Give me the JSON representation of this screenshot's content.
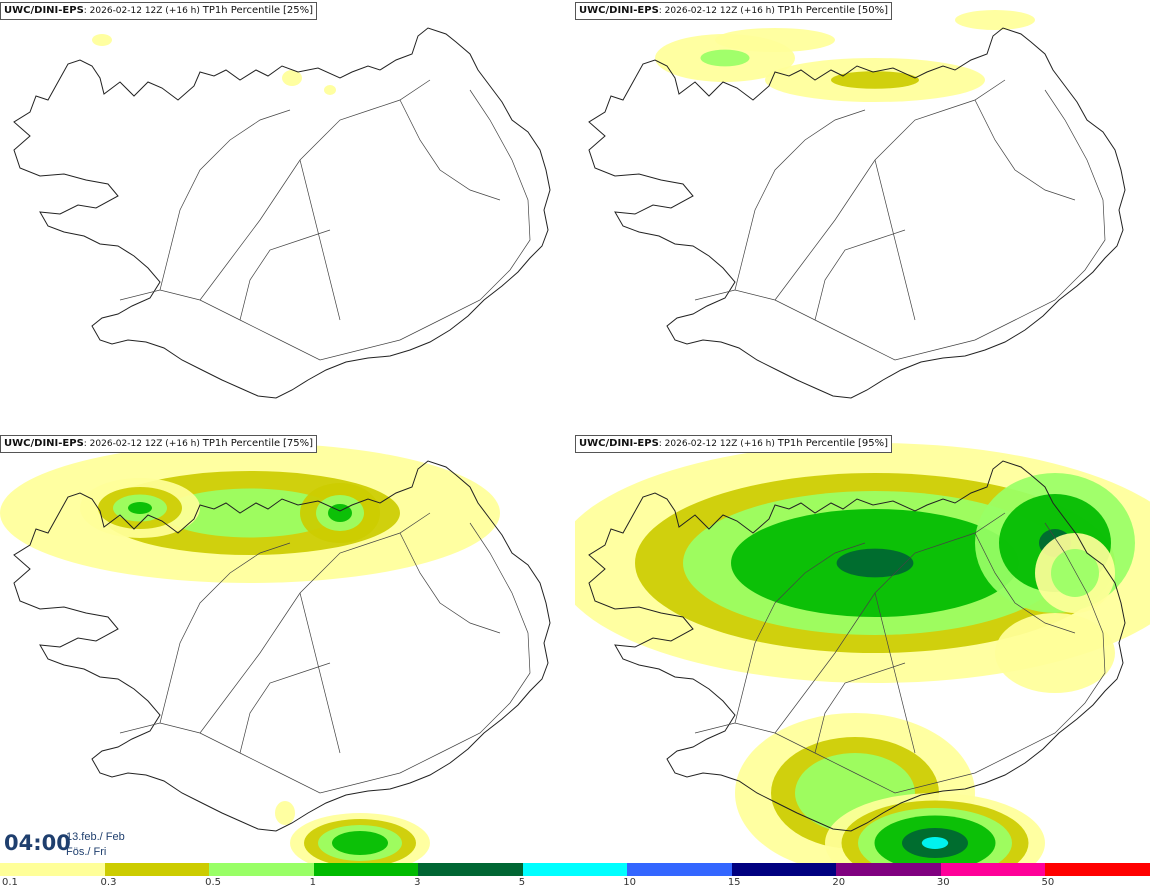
{
  "panels": [
    {
      "model": "UWC/DINI-EPS",
      "run": ": 2026-02-12 12Z (+16 h)",
      "parameter": "TP1h Percentile",
      "percentile": "[25%]"
    },
    {
      "model": "UWC/DINI-EPS",
      "run": ": 2026-02-12 12Z (+16 h)",
      "parameter": "TP1h Percentile",
      "percentile": "[50%]"
    },
    {
      "model": "UWC/DINI-EPS",
      "run": ": 2026-02-12 12Z (+16 h)",
      "parameter": "TP1h Percentile",
      "percentile": "[75%]"
    },
    {
      "model": "UWC/DINI-EPS",
      "run": ": 2026-02-12 12Z (+16 h)",
      "parameter": "TP1h Percentile",
      "percentile": "[95%]"
    }
  ],
  "valid_time": {
    "hour": "04:00",
    "date_line": "13.feb./ Feb",
    "day_line": "Fös./ Fri"
  },
  "legend": {
    "ticks": [
      "0.1",
      "0.3",
      "0.5",
      "1",
      "3",
      "5",
      "10",
      "15",
      "20",
      "30",
      "50"
    ],
    "colors": [
      "#ffff99",
      "#cccc00",
      "#99ff66",
      "#00bb00",
      "#006633",
      "#00ffff",
      "#3366ff",
      "#000080",
      "#800080",
      "#ff0099",
      "#ff0000"
    ]
  }
}
